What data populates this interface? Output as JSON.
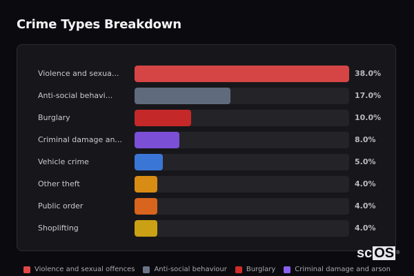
{
  "title": "Crime Types Breakdown",
  "chart_data": {
    "type": "bar",
    "orientation": "horizontal",
    "title": "Crime Types Breakdown",
    "categories": [
      "Violence and sexual offences",
      "Anti-social behaviour",
      "Burglary",
      "Criminal damage and arson",
      "Vehicle crime",
      "Other theft",
      "Public order",
      "Shoplifting"
    ],
    "display_labels": [
      "Violence and sexua...",
      "Anti-social behavi...",
      "Burglary",
      "Criminal damage an...",
      "Vehicle crime",
      "Other theft",
      "Public order",
      "Shoplifting"
    ],
    "values": [
      38.0,
      17.0,
      10.0,
      8.0,
      5.0,
      4.0,
      4.0,
      4.0
    ],
    "value_labels": [
      "38.0%",
      "17.0%",
      "10.0%",
      "8.0%",
      "5.0%",
      "4.0%",
      "4.0%",
      "4.0%"
    ],
    "colors": [
      "#d64545",
      "#5f6b7c",
      "#c42828",
      "#7b4fd6",
      "#3a76d6",
      "#d88c14",
      "#d9641e",
      "#caa015"
    ],
    "xlabel": "",
    "ylabel": "",
    "xlim": [
      0,
      38
    ],
    "grid": false,
    "legend_position": "bottom"
  },
  "legend": [
    {
      "label": "Violence and sexual offences",
      "color": "#e04848"
    },
    {
      "label": "Anti-social behaviour",
      "color": "#6a7486"
    },
    {
      "label": "Burglary",
      "color": "#d02c2c"
    },
    {
      "label": "Criminal damage and arson",
      "color": "#8a5ff0"
    }
  ],
  "watermark": {
    "prefix": "sc",
    "boxed": "OS",
    "mark": "®"
  }
}
